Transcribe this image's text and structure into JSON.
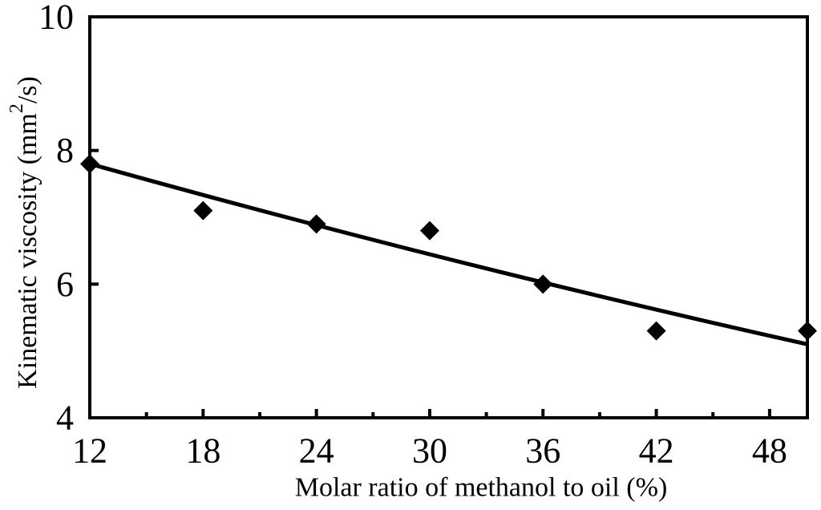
{
  "figure": {
    "background": "#ffffff",
    "ink_color": "#000000"
  },
  "chart_data": {
    "type": "scatter",
    "title": "",
    "xlabel": "Molar ratio of methanol to oil (%)",
    "ylabel": "Kinematic viscosity (mm²/s)",
    "ylabel_parts": {
      "pre": "Kinematic viscosity (mm",
      "sup": "2",
      "post": "/s)"
    },
    "xlim": [
      12,
      50
    ],
    "ylim": [
      4,
      10
    ],
    "x_major_ticks": [
      12,
      18,
      24,
      30,
      36,
      42,
      48
    ],
    "x_minor_ticks": [
      15,
      21,
      27,
      33,
      39,
      45
    ],
    "y_major_ticks": [
      4,
      6,
      8,
      10
    ],
    "grid": false,
    "legend": "none",
    "marker": "filled-diamond",
    "marker_color": "#000000",
    "points": [
      {
        "x": 12,
        "y": 7.8
      },
      {
        "x": 18,
        "y": 7.1
      },
      {
        "x": 24,
        "y": 6.9
      },
      {
        "x": 30,
        "y": 6.8
      },
      {
        "x": 36,
        "y": 6.0
      },
      {
        "x": 42,
        "y": 5.3
      },
      {
        "x": 50,
        "y": 5.3
      }
    ],
    "trendline": {
      "shape": "slightly-curved exponential-decay fit",
      "color": "#000000",
      "start": {
        "x": 12,
        "y": 7.8
      },
      "control": {
        "x": 31,
        "y": 6.3
      },
      "end": {
        "x": 50,
        "y": 5.1
      }
    }
  }
}
